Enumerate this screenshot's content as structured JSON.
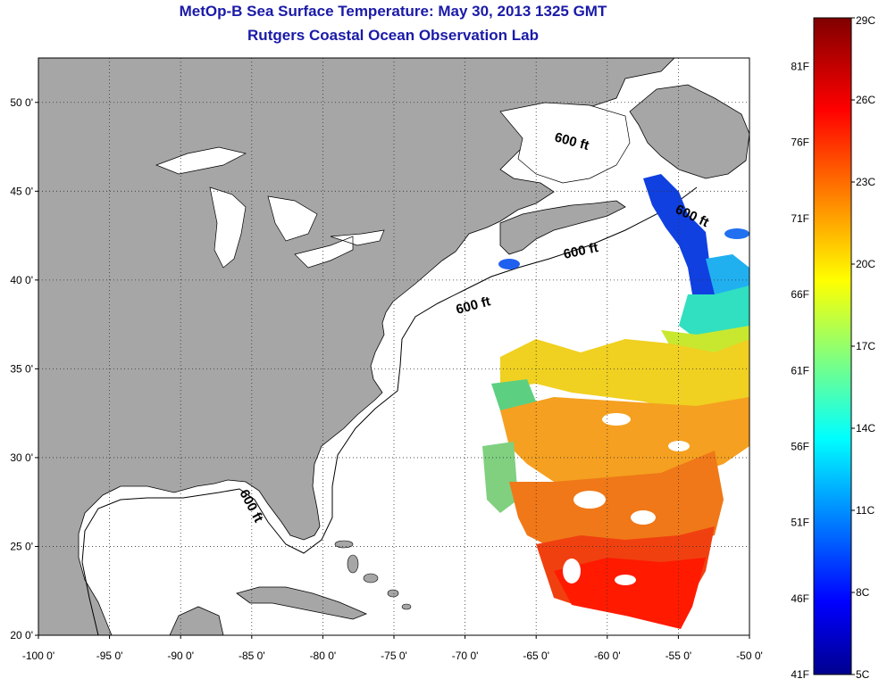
{
  "title": {
    "line1": "MetOp-B Sea Surface Temperature:  May 30, 2013 1325 GMT",
    "line2": "Rutgers Coastal Ocean Observation Lab"
  },
  "map": {
    "lon_ticks": [
      "-100 0'",
      "-95 0'",
      "-90 0'",
      "-85 0'",
      "-80 0'",
      "-75 0'",
      "-70 0'",
      "-65 0'",
      "-60 0'",
      "-55 0'",
      "-50 0'"
    ],
    "lat_ticks": [
      "50 0'",
      "45 0'",
      "40 0'",
      "35 0'",
      "30 0'",
      "25 0'",
      "20 0'"
    ],
    "lon_range": [
      -100,
      -50
    ],
    "lat_range": [
      20,
      52.5
    ],
    "contour_label": "600 ft",
    "colors": {
      "land": "#a6a6a6",
      "ocean_no_data": "#ffffff",
      "grid": "#333333"
    }
  },
  "colorbar": {
    "fahrenheit_labels": [
      "81F",
      "76F",
      "71F",
      "66F",
      "61F",
      "56F",
      "51F",
      "46F",
      "41F"
    ],
    "celsius_labels": [
      "29C",
      "26C",
      "23C",
      "20C",
      "17C",
      "14C",
      "11C",
      "8C",
      "5C"
    ],
    "colormap": "jet"
  }
}
